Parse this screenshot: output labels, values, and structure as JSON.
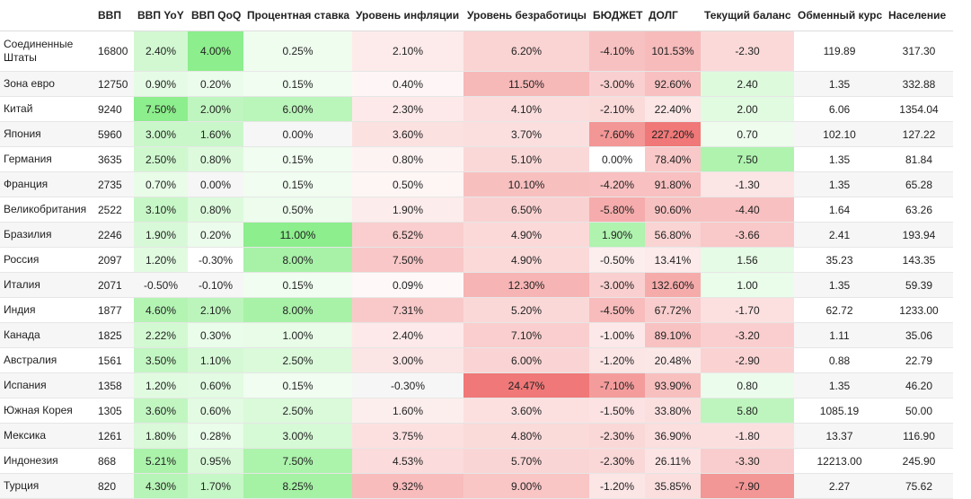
{
  "table": {
    "columns": [
      "ВВП",
      "ВВП YoY",
      "ВВП QoQ",
      "Процентная ставка",
      "Уровень инфляции",
      "Уровень безработицы",
      "БЮДЖЕТ",
      "ДОЛГ",
      "Текущий баланс",
      "Обменный курс",
      "Население"
    ],
    "rows": [
      [
        "Соединенные Штаты",
        "16800",
        "2.40%",
        "4.00%",
        "0.25%",
        "2.10%",
        "6.20%",
        "-4.10%",
        "101.53%",
        "-2.30",
        "119.89",
        "317.30"
      ],
      [
        "Зона евро",
        "12750",
        "0.90%",
        "0.20%",
        "0.15%",
        "0.40%",
        "11.50%",
        "-3.00%",
        "92.60%",
        "2.40",
        "1.35",
        "332.88"
      ],
      [
        "Китай",
        "9240",
        "7.50%",
        "2.00%",
        "6.00%",
        "2.30%",
        "4.10%",
        "-2.10%",
        "22.40%",
        "2.00",
        "6.06",
        "1354.04"
      ],
      [
        "Япония",
        "5960",
        "3.00%",
        "1.60%",
        "0.00%",
        "3.60%",
        "3.70%",
        "-7.60%",
        "227.20%",
        "0.70",
        "102.10",
        "127.22"
      ],
      [
        "Германия",
        "3635",
        "2.50%",
        "0.80%",
        "0.15%",
        "0.80%",
        "5.10%",
        "0.00%",
        "78.40%",
        "7.50",
        "1.35",
        "81.84"
      ],
      [
        "Франция",
        "2735",
        "0.70%",
        "0.00%",
        "0.15%",
        "0.50%",
        "10.10%",
        "-4.20%",
        "91.80%",
        "-1.30",
        "1.35",
        "65.28"
      ],
      [
        "Великобритания",
        "2522",
        "3.10%",
        "0.80%",
        "0.50%",
        "1.90%",
        "6.50%",
        "-5.80%",
        "90.60%",
        "-4.40",
        "1.64",
        "63.26"
      ],
      [
        "Бразилия",
        "2246",
        "1.90%",
        "0.20%",
        "11.00%",
        "6.52%",
        "4.90%",
        "1.90%",
        "56.80%",
        "-3.66",
        "2.41",
        "193.94"
      ],
      [
        "Россия",
        "2097",
        "1.20%",
        "-0.30%",
        "8.00%",
        "7.50%",
        "4.90%",
        "-0.50%",
        "13.41%",
        "1.56",
        "35.23",
        "143.35"
      ],
      [
        "Италия",
        "2071",
        "-0.50%",
        "-0.10%",
        "0.15%",
        "0.09%",
        "12.30%",
        "-3.00%",
        "132.60%",
        "1.00",
        "1.35",
        "59.39"
      ],
      [
        "Индия",
        "1877",
        "4.60%",
        "2.10%",
        "8.00%",
        "7.31%",
        "5.20%",
        "-4.50%",
        "67.72%",
        "-1.70",
        "62.72",
        "1233.00"
      ],
      [
        "Канада",
        "1825",
        "2.22%",
        "0.30%",
        "1.00%",
        "2.40%",
        "7.10%",
        "-1.00%",
        "89.10%",
        "-3.20",
        "1.11",
        "35.06"
      ],
      [
        "Австралия",
        "1561",
        "3.50%",
        "1.10%",
        "2.50%",
        "3.00%",
        "6.00%",
        "-1.20%",
        "20.48%",
        "-2.90",
        "0.88",
        "22.79"
      ],
      [
        "Испания",
        "1358",
        "1.20%",
        "0.60%",
        "0.15%",
        "-0.30%",
        "24.47%",
        "-7.10%",
        "93.90%",
        "0.80",
        "1.35",
        "46.20"
      ],
      [
        "Южная Корея",
        "1305",
        "3.60%",
        "0.60%",
        "2.50%",
        "1.60%",
        "3.60%",
        "-1.50%",
        "33.80%",
        "5.80",
        "1085.19",
        "50.00"
      ],
      [
        "Мексика",
        "1261",
        "1.80%",
        "0.28%",
        "3.00%",
        "3.75%",
        "4.80%",
        "-2.30%",
        "36.90%",
        "-1.80",
        "13.37",
        "116.90"
      ],
      [
        "Индонезия",
        "868",
        "5.21%",
        "0.95%",
        "7.50%",
        "4.53%",
        "5.70%",
        "-2.30%",
        "26.11%",
        "-3.30",
        "12213.00",
        "245.90"
      ],
      [
        "Турция",
        "820",
        "4.30%",
        "1.70%",
        "8.25%",
        "9.32%",
        "9.00%",
        "-1.20%",
        "35.85%",
        "-7.90",
        "2.27",
        "75.62"
      ]
    ]
  }
}
